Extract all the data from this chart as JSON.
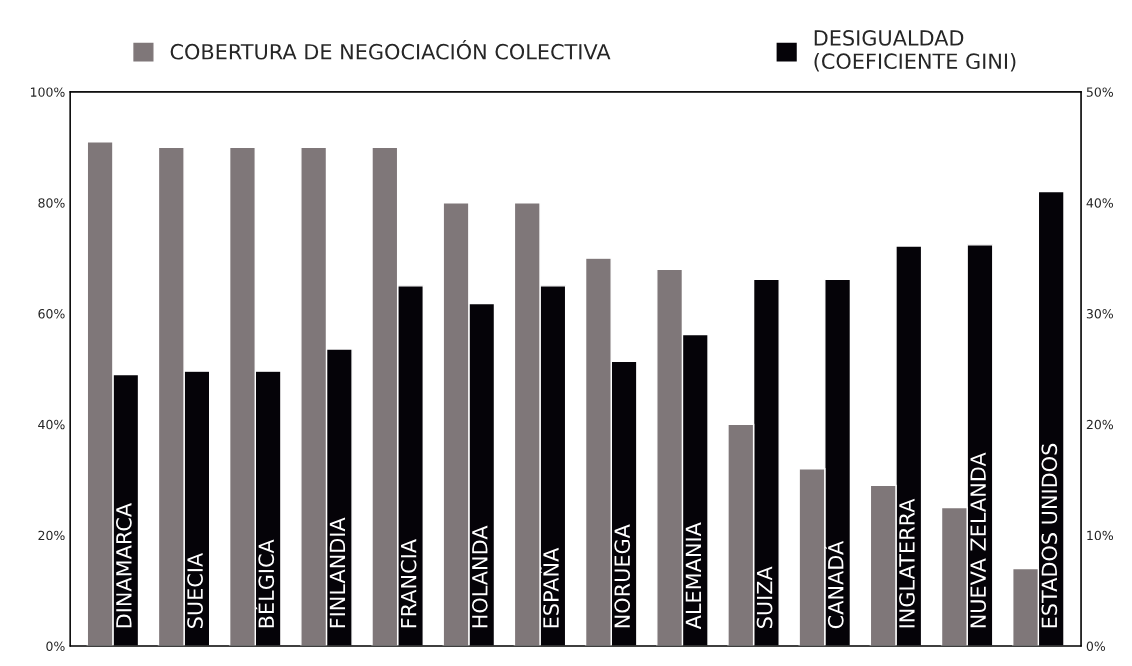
{
  "chart_data": {
    "type": "bar",
    "categories": [
      "DINAMARCA",
      "SUECIA",
      "BÉLGICA",
      "FINLANDIA",
      "FRANCIA",
      "HOLANDA",
      "ESPAÑA",
      "NORUEGA",
      "ALEMANIA",
      "SUIZA",
      "CANADÁ",
      "INGLATERRA",
      "NUEVA ZELANDA",
      "ESTADOS UNIDOS"
    ],
    "series": [
      {
        "name": "COBERTURA DE NEGOCIACIÓN COLECTIVA",
        "color": "#7f7779",
        "values": [
          91,
          90,
          90,
          90,
          90,
          80,
          80,
          70,
          68,
          40,
          32,
          29,
          25,
          14
        ]
      },
      {
        "name": "DESIGUALDAD\n(COEFICIENTE GINI)",
        "color": "#050308",
        "axis": "y2",
        "values": [
          24.5,
          24.8,
          24.8,
          26.8,
          32.5,
          30.9,
          32.5,
          25.7,
          28.1,
          33.1,
          33.1,
          36.1,
          36.2,
          41
        ]
      }
    ],
    "ylim": [
      0,
      100
    ],
    "yticks": [
      {
        "value": 0,
        "label": "0%"
      },
      {
        "value": 20,
        "label": "20%"
      },
      {
        "value": 40,
        "label": "40%"
      },
      {
        "value": 60,
        "label": "60%"
      },
      {
        "value": 80,
        "label": "80%"
      },
      {
        "value": 100,
        "label": "100%"
      }
    ],
    "y2lim": [
      0,
      50
    ],
    "y2ticks": [
      {
        "value": 0,
        "label": "0%"
      },
      {
        "value": 10,
        "label": "10%"
      },
      {
        "value": 20,
        "label": "20%"
      },
      {
        "value": 30,
        "label": "30%"
      },
      {
        "value": 40,
        "label": "40%"
      },
      {
        "value": 50,
        "label": "50%"
      }
    ],
    "legend": "top",
    "grid": false
  }
}
